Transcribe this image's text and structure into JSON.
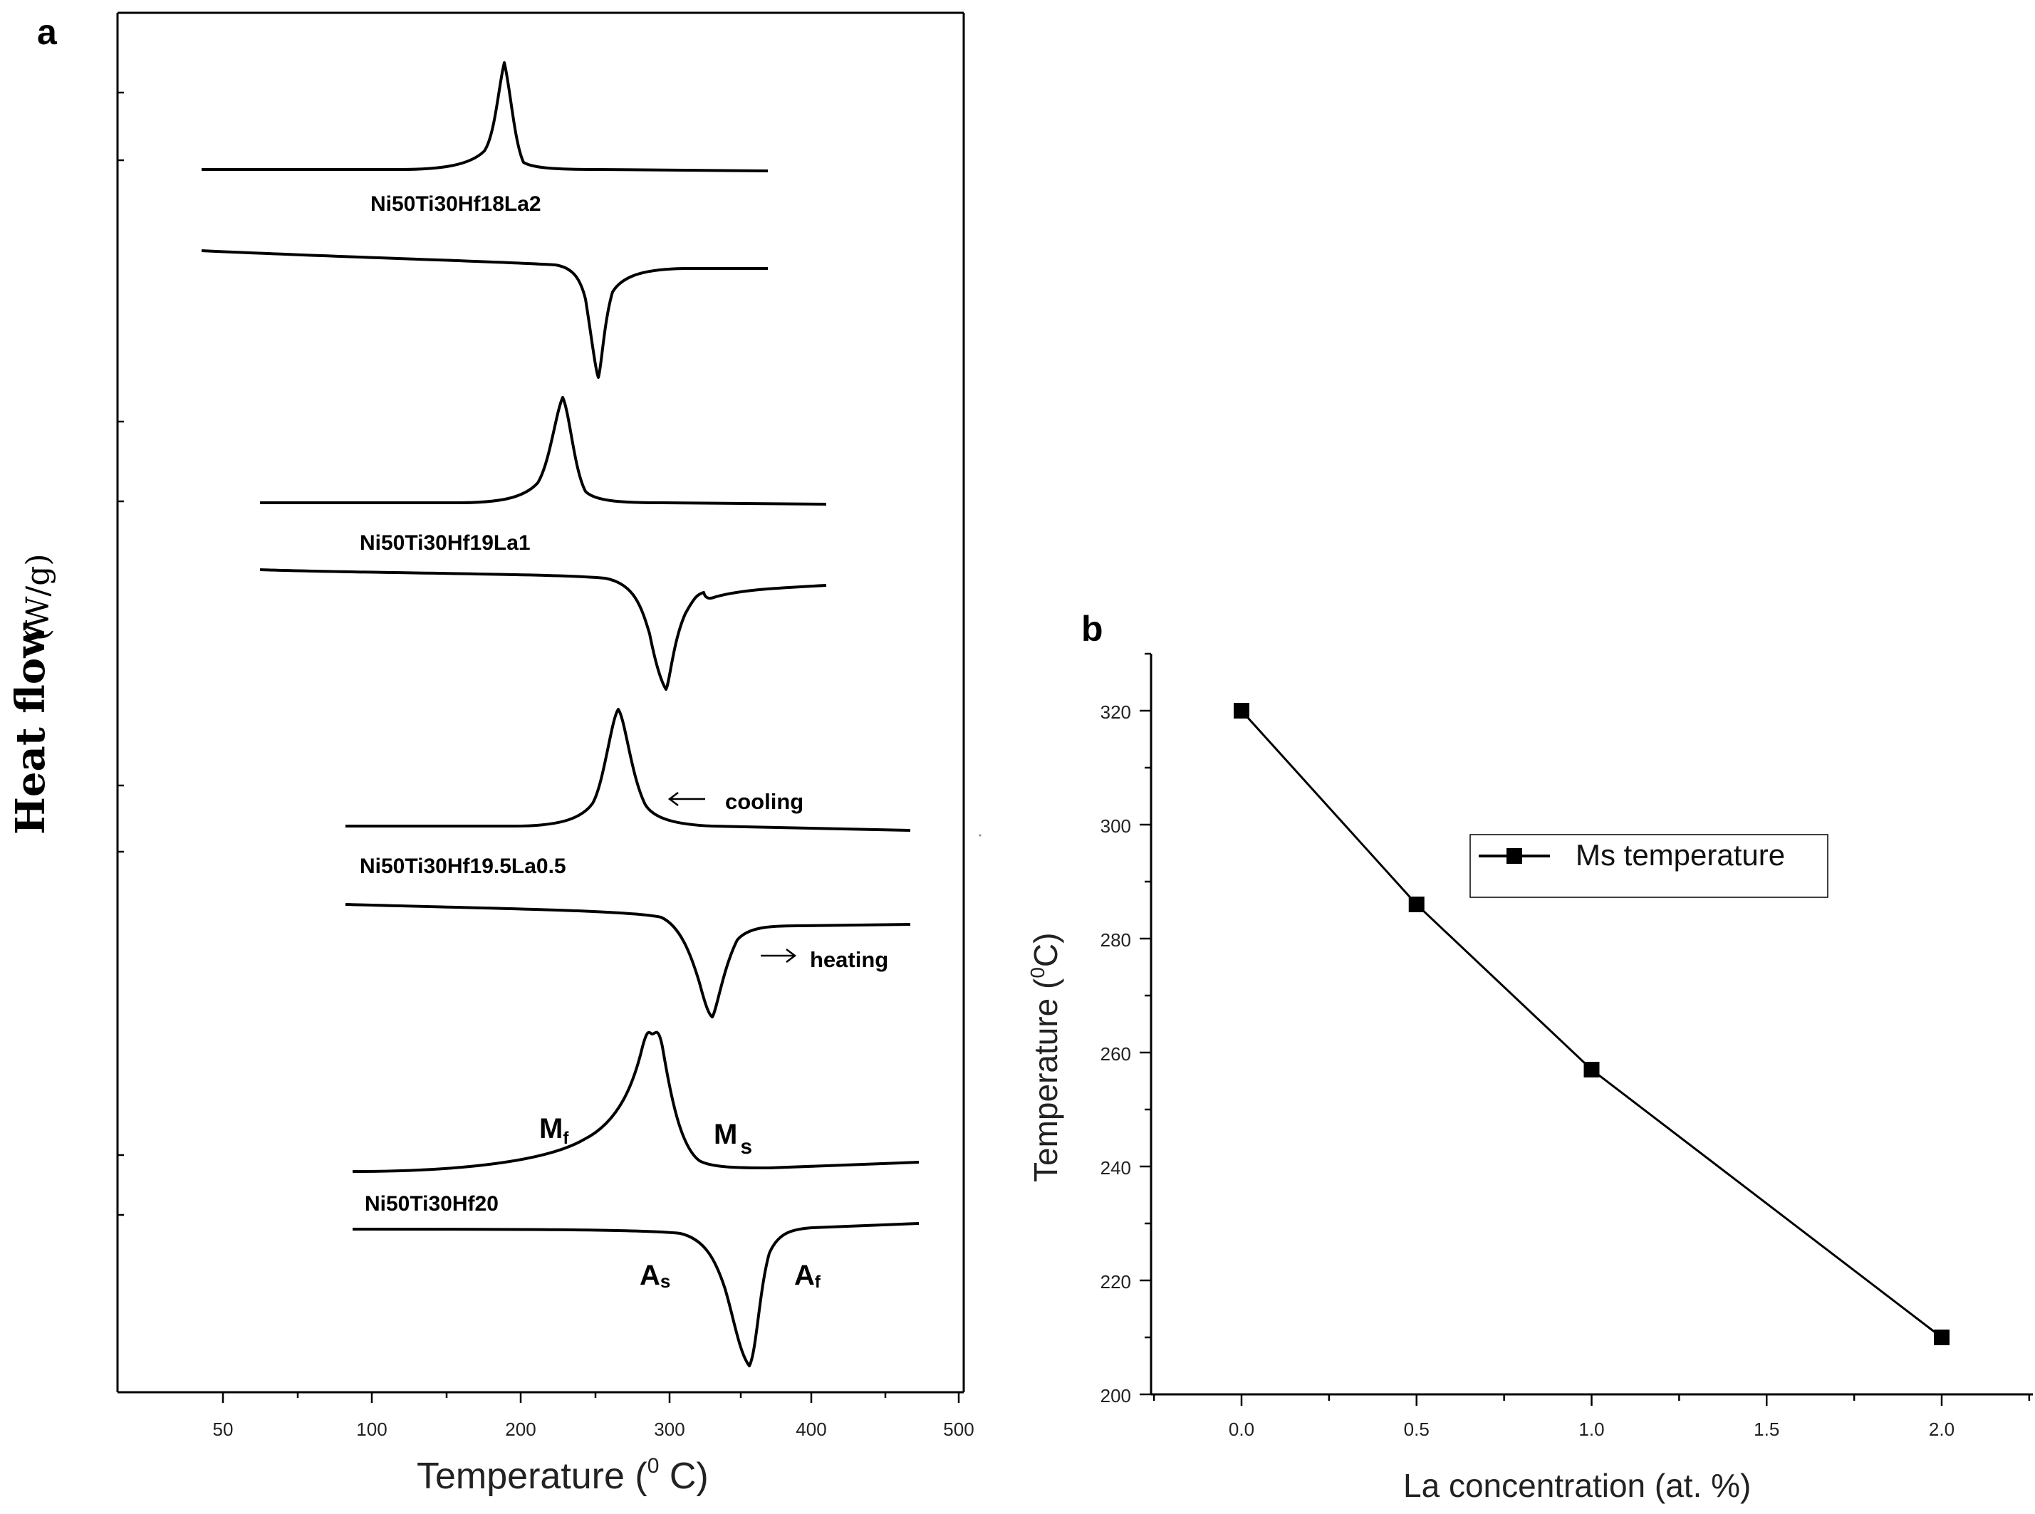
{
  "panel_a": {
    "panel_label": "a",
    "ylabel_main": "Heat flow",
    "ylabel_unit": "(W/g)",
    "xlabel": "Temperature (⁰ C)",
    "xlabel_parts": {
      "base": "Temperature (",
      "sup": "0",
      "close": " C)"
    },
    "annotations": {
      "cooling": "cooling",
      "heating": "heating",
      "Mf": {
        "main": "M",
        "sub": "f"
      },
      "Ms": {
        "main": "M",
        "sub": "s"
      },
      "As": {
        "main": "A",
        "sub": "s"
      },
      "Af": {
        "main": "A",
        "sub": "f"
      }
    }
  },
  "panel_b": {
    "panel_label": "b",
    "ylabel_parts": {
      "base": "Temperature (",
      "sup": "0",
      "close": "C)"
    },
    "xlabel": "La concentration (at. %)",
    "legend": "Ms temperature"
  },
  "colors": {
    "line": "#000000",
    "background": "#ffffff",
    "frame": "#000000"
  },
  "chart_data": [
    {
      "type": "line",
      "title": "a",
      "xlabel": "Temperature (0 C)",
      "ylabel": "Heat flow (W/g)",
      "xlim": [
        22,
        500
      ],
      "xticks": [
        50,
        100,
        200,
        300,
        400,
        500
      ],
      "series": [
        {
          "name": "Ni50Ti30Hf18La2",
          "label": "Ni50Ti30Hf18La2",
          "segment": "cooling",
          "x_range": [
            44,
            370
          ],
          "peak_x": 190,
          "direction": "exothermic"
        },
        {
          "name": "Ni50Ti30Hf18La2",
          "segment": "heating",
          "x_range": [
            44,
            370
          ],
          "peak_x": 254,
          "direction": "endothermic"
        },
        {
          "name": "Ni50Ti30Hf19La1",
          "label": "Ni50Ti30Hf19La1",
          "segment": "cooling",
          "x_range": [
            60,
            410
          ],
          "peak_x": 232,
          "direction": "exothermic"
        },
        {
          "name": "Ni50Ti30Hf19La1",
          "segment": "heating",
          "x_range": [
            60,
            410
          ],
          "peak_x": 297,
          "direction": "endothermic"
        },
        {
          "name": "Ni50Ti30Hf19.5La0.5",
          "label": "Ni50Ti30Hf19.5La0.5",
          "segment": "cooling",
          "x_range": [
            90,
            470
          ],
          "peak_x": 266,
          "direction": "exothermic"
        },
        {
          "name": "Ni50Ti30Hf19.5La0.5",
          "segment": "heating",
          "x_range": [
            90,
            470
          ],
          "peak_x": 334,
          "direction": "endothermic"
        },
        {
          "name": "Ni50Ti30Hf20",
          "label": "Ni50Ti30Hf20",
          "segment": "cooling",
          "x_range": [
            90,
            475
          ],
          "peak_x": 290,
          "direction": "exothermic"
        },
        {
          "name": "Ni50Ti30Hf20",
          "segment": "heating",
          "x_range": [
            90,
            475
          ],
          "peak_x": 357,
          "direction": "endothermic"
        }
      ]
    },
    {
      "type": "line",
      "title": "b",
      "xlabel": "La concentration (at. %)",
      "ylabel": "Temperature (0C)",
      "xlim": [
        -0.25,
        2.25
      ],
      "ylim": [
        200,
        330
      ],
      "xticks": [
        0.0,
        0.5,
        1.0,
        1.5,
        2.0
      ],
      "yticks": [
        200,
        220,
        240,
        260,
        280,
        300,
        320
      ],
      "legend": "Ms temperature",
      "series": [
        {
          "name": "Ms temperature",
          "x": [
            0.0,
            0.5,
            1.0,
            2.0
          ],
          "y": [
            320,
            286,
            257,
            210
          ]
        }
      ]
    }
  ]
}
